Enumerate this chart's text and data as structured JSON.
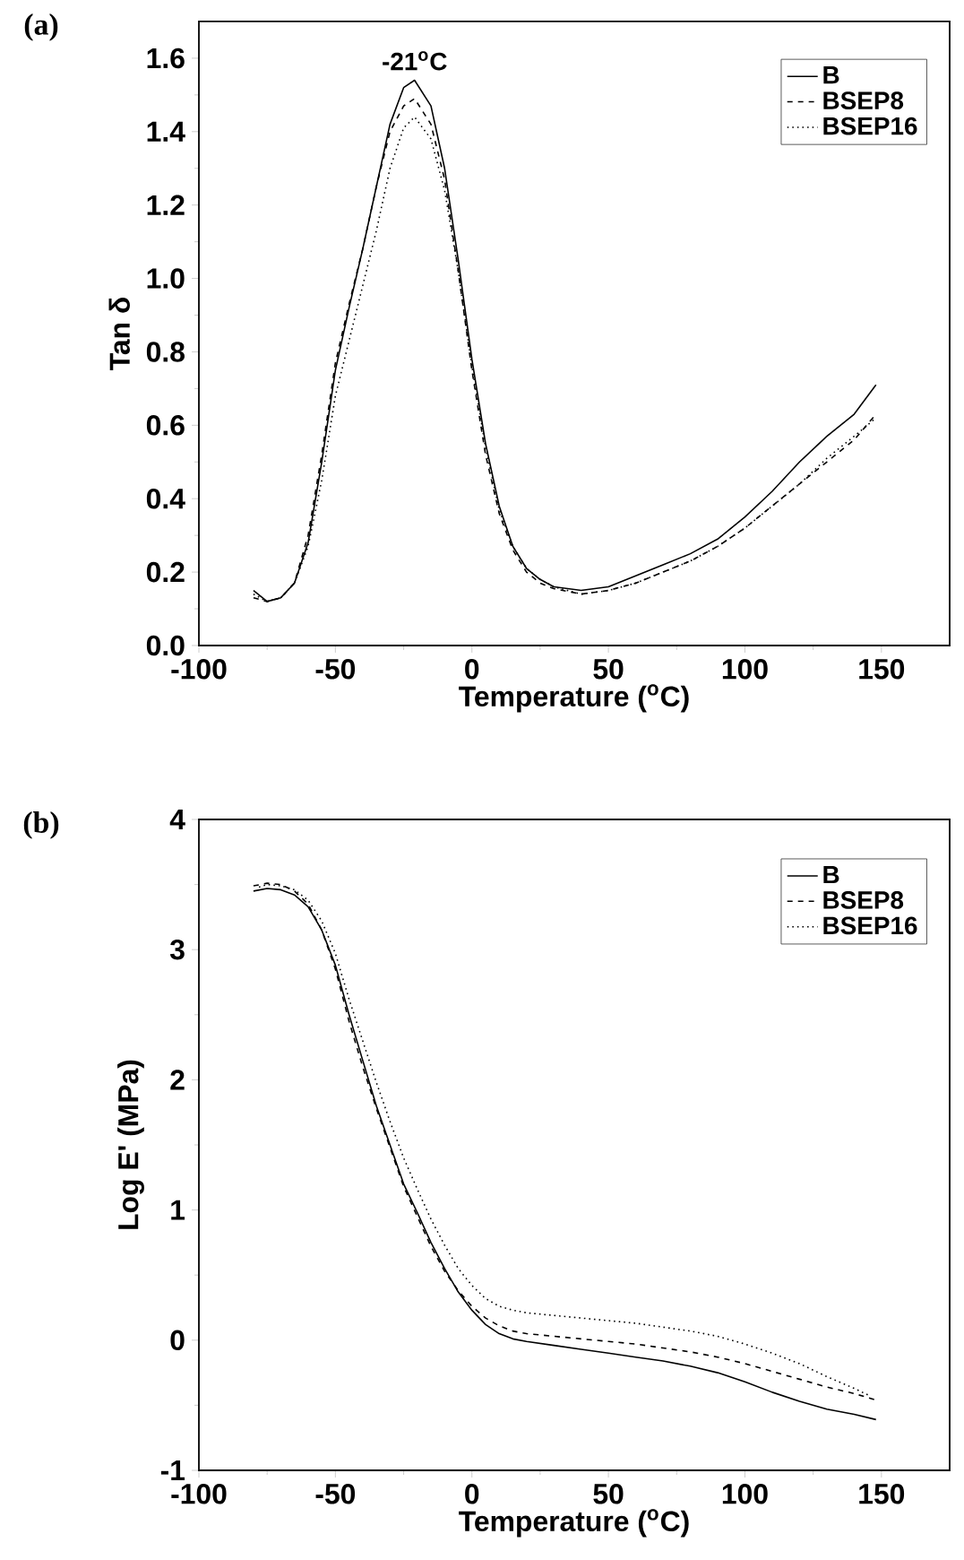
{
  "chart_data": [
    {
      "type": "line",
      "title": "(a)",
      "xlabel": "Temperature ($^{o}$C)",
      "ylabel": "Tan δ",
      "legend": "top right",
      "annotations": [
        {
          "text": "-21$^{o}$C",
          "x": -21,
          "y": 1.54
        }
      ],
      "xlim": [
        -100,
        175
      ],
      "xticks": [
        -100,
        -50,
        0,
        50,
        100,
        150
      ],
      "ylim": [
        0,
        1.7
      ],
      "yticks": [
        {
          "value": 0,
          "label": "0.0"
        },
        {
          "value": 0.2,
          "label": "0.2"
        },
        {
          "value": 0.4,
          "label": "0.4"
        },
        {
          "value": 0.6,
          "label": "0.6"
        },
        {
          "value": 0.8,
          "label": "0.8"
        },
        {
          "value": 1.0,
          "label": "1.0"
        },
        {
          "value": 1.2,
          "label": "1.2"
        },
        {
          "value": 1.4,
          "label": "1.4"
        },
        {
          "value": 1.6,
          "label": "1.6"
        }
      ],
      "x": [
        -80,
        -75,
        -70,
        -65,
        -60,
        -55,
        -50,
        -45,
        -40,
        -35,
        -30,
        -25,
        -21,
        -15,
        -10,
        -5,
        0,
        5,
        10,
        15,
        20,
        25,
        30,
        40,
        50,
        60,
        70,
        80,
        90,
        100,
        110,
        120,
        130,
        140,
        148
      ],
      "series": [
        {
          "name": "B",
          "color": "#000000",
          "line_style": "solid",
          "values": [
            0.15,
            0.12,
            0.13,
            0.17,
            0.28,
            0.5,
            0.75,
            0.92,
            1.08,
            1.25,
            1.42,
            1.52,
            1.54,
            1.47,
            1.3,
            1.05,
            0.78,
            0.55,
            0.38,
            0.27,
            0.21,
            0.18,
            0.16,
            0.15,
            0.16,
            0.19,
            0.22,
            0.25,
            0.29,
            0.35,
            0.42,
            0.5,
            0.57,
            0.63,
            0.71
          ]
        },
        {
          "name": "BSEP8",
          "color": "#000000",
          "line_style": "dashed",
          "values": [
            0.13,
            0.12,
            0.13,
            0.17,
            0.3,
            0.52,
            0.77,
            0.93,
            1.08,
            1.25,
            1.4,
            1.47,
            1.49,
            1.42,
            1.27,
            1.02,
            0.75,
            0.52,
            0.36,
            0.26,
            0.2,
            0.17,
            0.155,
            0.14,
            0.15,
            0.17,
            0.2,
            0.23,
            0.27,
            0.32,
            0.38,
            0.44,
            0.5,
            0.56,
            0.63
          ]
        },
        {
          "name": "BSEP16",
          "color": "#000000",
          "line_style": "dotted",
          "values": [
            0.14,
            0.12,
            0.13,
            0.17,
            0.27,
            0.45,
            0.68,
            0.83,
            0.98,
            1.13,
            1.3,
            1.41,
            1.44,
            1.38,
            1.24,
            1.02,
            0.76,
            0.54,
            0.37,
            0.27,
            0.21,
            0.18,
            0.16,
            0.14,
            0.15,
            0.17,
            0.2,
            0.23,
            0.27,
            0.32,
            0.38,
            0.44,
            0.51,
            0.57,
            0.62
          ]
        }
      ]
    },
    {
      "type": "line",
      "title": "(b)",
      "xlabel": "Temperature ($^{o}$C)",
      "ylabel": "Log E' (MPa)",
      "legend": "top right",
      "xlim": [
        -100,
        175
      ],
      "xticks": [
        -100,
        -50,
        0,
        50,
        100,
        150
      ],
      "ylim": [
        -1,
        4
      ],
      "yticks": [
        -1,
        0,
        1,
        2,
        3,
        4
      ],
      "x": [
        -80,
        -75,
        -70,
        -65,
        -60,
        -55,
        -50,
        -45,
        -40,
        -35,
        -30,
        -25,
        -20,
        -15,
        -10,
        -5,
        0,
        5,
        10,
        15,
        20,
        30,
        40,
        50,
        60,
        70,
        80,
        90,
        100,
        110,
        120,
        130,
        140,
        148
      ],
      "series": [
        {
          "name": "B",
          "color": "#000000",
          "line_style": "solid",
          "values": [
            3.45,
            3.47,
            3.46,
            3.42,
            3.33,
            3.15,
            2.88,
            2.5,
            2.15,
            1.8,
            1.5,
            1.2,
            0.98,
            0.75,
            0.55,
            0.37,
            0.23,
            0.12,
            0.05,
            0.01,
            -0.01,
            -0.04,
            -0.07,
            -0.1,
            -0.13,
            -0.16,
            -0.2,
            -0.25,
            -0.32,
            -0.4,
            -0.47,
            -0.53,
            -0.57,
            -0.61
          ]
        },
        {
          "name": "BSEP8",
          "color": "#000000",
          "line_style": "dashed",
          "values": [
            3.49,
            3.51,
            3.5,
            3.45,
            3.35,
            3.15,
            2.85,
            2.45,
            2.1,
            1.78,
            1.48,
            1.18,
            0.95,
            0.72,
            0.53,
            0.38,
            0.26,
            0.17,
            0.11,
            0.07,
            0.05,
            0.03,
            0.01,
            -0.01,
            -0.03,
            -0.06,
            -0.09,
            -0.13,
            -0.18,
            -0.24,
            -0.3,
            -0.36,
            -0.41,
            -0.46
          ]
        },
        {
          "name": "BSEP16",
          "color": "#000000",
          "line_style": "dotted",
          "x": [
            -78,
            -75,
            -70,
            -65,
            -60,
            -55,
            -50,
            -45,
            -40,
            -35,
            -30,
            -25,
            -20,
            -15,
            -10,
            -5,
            0,
            5,
            10,
            15,
            20,
            30,
            40,
            50,
            60,
            70,
            80,
            90,
            100,
            110,
            120,
            130,
            140,
            146
          ],
          "values": [
            3.48,
            3.5,
            3.49,
            3.46,
            3.38,
            3.22,
            2.97,
            2.62,
            2.3,
            1.98,
            1.68,
            1.4,
            1.16,
            0.93,
            0.73,
            0.55,
            0.42,
            0.32,
            0.26,
            0.23,
            0.21,
            0.19,
            0.17,
            0.15,
            0.13,
            0.1,
            0.07,
            0.03,
            -0.03,
            -0.1,
            -0.18,
            -0.28,
            -0.37,
            -0.43
          ]
        }
      ]
    }
  ]
}
